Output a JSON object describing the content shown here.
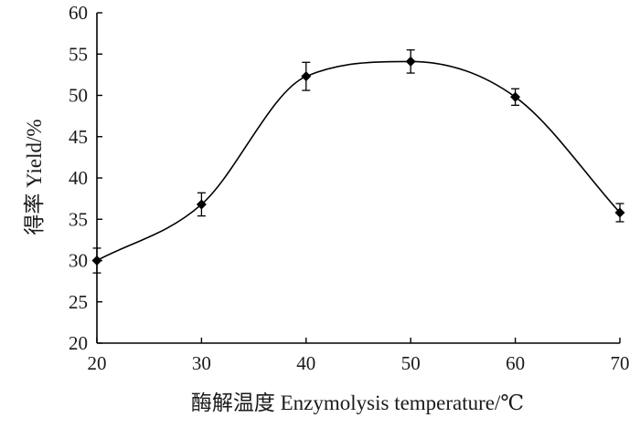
{
  "chart_data": {
    "type": "line",
    "title": "",
    "xlabel": "酶解温度  Enzymolysis temperature/℃",
    "ylabel": "得率  Yield/%",
    "xlim": [
      20,
      70
    ],
    "ylim": [
      20,
      60
    ],
    "xticks": [
      20,
      30,
      40,
      50,
      60,
      70
    ],
    "yticks": [
      20,
      25,
      30,
      35,
      40,
      45,
      50,
      55,
      60
    ],
    "grid": false,
    "smooth": true,
    "series": [
      {
        "marker": "diamond",
        "color": "#000000",
        "x": [
          20,
          30,
          40,
          50,
          60,
          70
        ],
        "y": [
          30.0,
          36.8,
          52.3,
          54.1,
          49.8,
          35.8
        ],
        "error": [
          1.5,
          1.4,
          1.7,
          1.4,
          1.0,
          1.1
        ]
      }
    ]
  }
}
